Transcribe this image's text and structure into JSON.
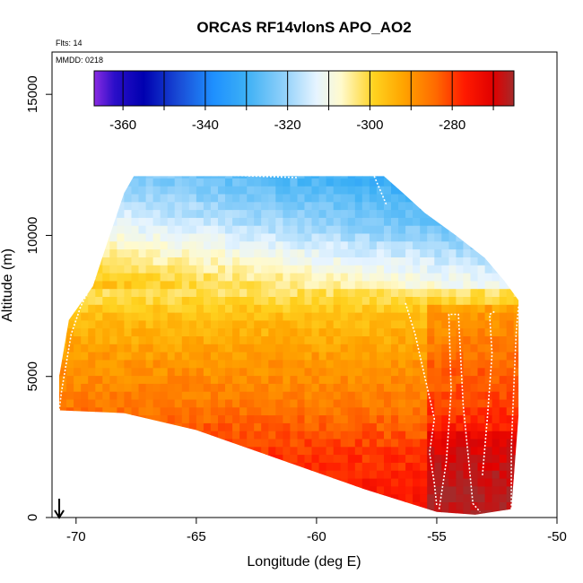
{
  "chart_data": {
    "type": "heatmap",
    "title": "ORCAS RF14vlonS APO_AO2",
    "notes": {
      "flights": "Flts: 14",
      "date": "MMDD: 0218"
    },
    "xlabel": "Longitude (deg E)",
    "ylabel": "Altitude (m)",
    "xlim": [
      -71,
      -50
    ],
    "ylim": [
      0,
      16500
    ],
    "x_ticks": [
      -70,
      -65,
      -60,
      -55,
      -50
    ],
    "x_tick_labels": [
      "-70",
      "-65",
      "-60",
      "-55",
      "-50"
    ],
    "y_ticks": [
      0,
      5000,
      10000,
      15000
    ],
    "y_tick_labels": [
      "0",
      "5000",
      "10000",
      "15000"
    ],
    "colorbar": {
      "range": [
        -367,
        -265
      ],
      "ticks": [
        -360,
        -340,
        -320,
        -300,
        -280
      ],
      "tick_labels": [
        "-360",
        "-340",
        "-320",
        "-300",
        "-280"
      ],
      "stops": [
        {
          "v": -367,
          "c": "#8a2be2"
        },
        {
          "v": -362,
          "c": "#2a0ec8"
        },
        {
          "v": -355,
          "c": "#0000b0"
        },
        {
          "v": -346,
          "c": "#1a4fd8"
        },
        {
          "v": -338,
          "c": "#1e90ff"
        },
        {
          "v": -330,
          "c": "#3cb0f5"
        },
        {
          "v": -321,
          "c": "#8fd0fa"
        },
        {
          "v": -313,
          "c": "#e6f4ff"
        },
        {
          "v": -307,
          "c": "#fffacd"
        },
        {
          "v": -299,
          "c": "#ffd21f"
        },
        {
          "v": -292,
          "c": "#ffa500"
        },
        {
          "v": -284,
          "c": "#ff6a00"
        },
        {
          "v": -277,
          "c": "#ff1a00"
        },
        {
          "v": -270,
          "c": "#e00000"
        },
        {
          "v": -265,
          "c": "#a52a2a"
        }
      ]
    },
    "field": {
      "description_units": "APO_AO2 curtain",
      "polygon_lon_alt": [
        [
          -70.7,
          3800
        ],
        [
          -70.7,
          5000
        ],
        [
          -70.3,
          7000
        ],
        [
          -69.3,
          8200
        ],
        [
          -68.8,
          9500
        ],
        [
          -68.4,
          10500
        ],
        [
          -68.0,
          11500
        ],
        [
          -67.6,
          12100
        ],
        [
          -57.2,
          12100
        ],
        [
          -56.4,
          11500
        ],
        [
          -55.5,
          10800
        ],
        [
          -54.2,
          10000
        ],
        [
          -53.0,
          9200
        ],
        [
          -52.2,
          8400
        ],
        [
          -51.6,
          7700
        ],
        [
          -51.6,
          3600
        ],
        [
          -51.9,
          300
        ],
        [
          -53.4,
          100
        ],
        [
          -55.0,
          200
        ],
        [
          -58.0,
          1000
        ],
        [
          -62.0,
          2200
        ],
        [
          -65.0,
          3100
        ],
        [
          -68.0,
          3700
        ]
      ],
      "layers": [
        {
          "alt": 12000,
          "value": -328
        },
        {
          "alt": 10500,
          "value": -320
        },
        {
          "alt": 9000,
          "value": -309
        },
        {
          "alt": 8000,
          "value": -302
        },
        {
          "alt": 7200,
          "value": -296
        },
        {
          "alt": 5500,
          "value": -290
        },
        {
          "alt": 4000,
          "value": -286
        },
        {
          "alt": 2500,
          "value": -280
        },
        {
          "alt": 1000,
          "value": -276
        }
      ]
    },
    "flight_tracks": [
      [
        [
          -70.7,
          3800
        ],
        [
          -70.6,
          4500
        ],
        [
          -70.4,
          5500
        ],
        [
          -70.2,
          6500
        ],
        [
          -69.8,
          7500
        ],
        [
          -69.2,
          8500
        ]
      ],
      [
        [
          -68.6,
          11800
        ],
        [
          -68.3,
          12100
        ],
        [
          -67.9,
          12250
        ],
        [
          -64.0,
          12150
        ],
        [
          -62.5,
          12100
        ],
        [
          -60.8,
          12050
        ]
      ],
      [
        [
          -57.6,
          12100
        ],
        [
          -57.3,
          11500
        ],
        [
          -57.1,
          11100
        ]
      ],
      [
        [
          -56.3,
          7600
        ],
        [
          -55.9,
          6500
        ],
        [
          -55.5,
          5000
        ],
        [
          -55.1,
          3500
        ],
        [
          -55.3,
          2300
        ],
        [
          -55.1,
          1200
        ],
        [
          -55.0,
          400
        ]
      ],
      [
        [
          -54.9,
          300
        ],
        [
          -54.6,
          2000
        ],
        [
          -54.4,
          4500
        ],
        [
          -54.5,
          7200
        ],
        [
          -54.1,
          7200
        ],
        [
          -53.9,
          4000
        ],
        [
          -53.5,
          500
        ],
        [
          -53.2,
          200
        ]
      ],
      [
        [
          -53.1,
          1500
        ],
        [
          -52.9,
          3500
        ],
        [
          -52.7,
          5800
        ],
        [
          -52.8,
          7200
        ],
        [
          -52.6,
          7300
        ]
      ],
      [
        [
          -51.9,
          300
        ],
        [
          -51.9,
          2500
        ],
        [
          -51.8,
          4500
        ],
        [
          -51.7,
          6500
        ],
        [
          -51.6,
          7500
        ]
      ]
    ],
    "marker": {
      "type": "arrow-down",
      "lon": -70.7,
      "alt": 600
    },
    "legend": "none"
  }
}
